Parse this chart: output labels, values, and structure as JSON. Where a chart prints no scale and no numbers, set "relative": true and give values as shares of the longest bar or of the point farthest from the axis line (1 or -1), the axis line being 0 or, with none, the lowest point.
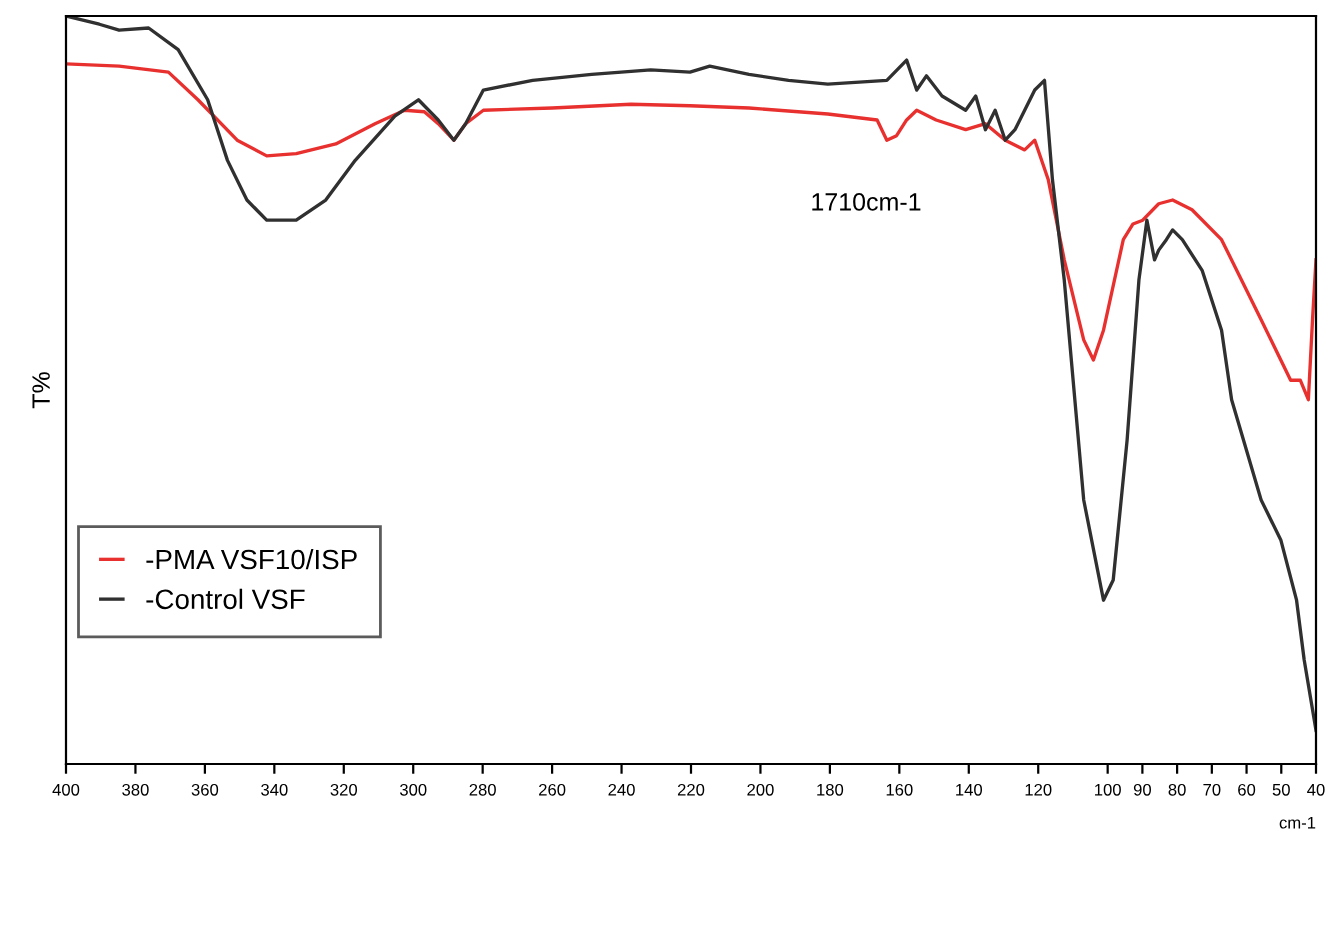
{
  "chart_data": {
    "type": "line",
    "relative": true,
    "xlabel": "cm-1",
    "ylabel": "T%",
    "annotations": [
      "1710cm-1"
    ],
    "xlim": [
      400,
      40
    ],
    "xticks": [
      400,
      380,
      360,
      340,
      320,
      300,
      280,
      260,
      240,
      220,
      200,
      180,
      160,
      140,
      120,
      100,
      90,
      80,
      70,
      60,
      50,
      40
    ],
    "legend": "bottom left",
    "grid": false,
    "series": [
      {
        "name": "-PMA VSF10/ISP",
        "color": "#e8302f",
        "x": [
          400,
          384.7,
          370.5,
          362.0,
          350.7,
          342.2,
          333.7,
          322.3,
          311.0,
          302.5,
          296.8,
          292.8,
          288.3,
          284.9,
          279.8,
          260.0,
          237.3,
          220.3,
          203.3,
          180.6,
          166.4,
          163.6,
          160.8,
          157.9,
          155.0,
          149.4,
          140.9,
          135.2,
          129.5,
          123.9,
          121.0,
          117.1,
          112.5,
          106.9,
          104.1,
          101.2,
          95.5,
          92.7,
          89.9,
          85.3,
          81.3,
          75.7,
          67.2,
          55.8,
          47.3,
          44.5,
          42.2,
          41.0,
          40
        ],
        "values": [
          0.936,
          0.933,
          0.925,
          0.888,
          0.834,
          0.813,
          0.816,
          0.829,
          0.856,
          0.874,
          0.872,
          0.856,
          0.834,
          0.856,
          0.874,
          0.877,
          0.882,
          0.88,
          0.877,
          0.869,
          0.861,
          0.834,
          0.84,
          0.861,
          0.874,
          0.861,
          0.848,
          0.856,
          0.834,
          0.821,
          0.834,
          0.781,
          0.674,
          0.567,
          0.54,
          0.58,
          0.701,
          0.722,
          0.727,
          0.749,
          0.754,
          0.741,
          0.701,
          0.594,
          0.513,
          0.513,
          0.487,
          0.594,
          0.674
        ]
      },
      {
        "name": "-Control VSF",
        "color": "#303030",
        "x": [
          400,
          390.4,
          384.7,
          376.2,
          367.7,
          359.2,
          353.5,
          347.9,
          342.2,
          333.7,
          325.2,
          316.7,
          305.3,
          298.5,
          292.8,
          288.3,
          284.9,
          279.8,
          265.6,
          248.6,
          231.6,
          220.3,
          214.6,
          203.3,
          191.9,
          180.6,
          163.6,
          157.9,
          155.0,
          152.2,
          147.7,
          140.9,
          138.0,
          135.2,
          132.4,
          129.5,
          126.7,
          123.9,
          121.0,
          118.2,
          115.9,
          112.5,
          106.9,
          101.2,
          98.4,
          94.4,
          91.0,
          88.7,
          86.5,
          85.3,
          83.1,
          81.3,
          78.5,
          72.8,
          67.2,
          64.3,
          55.8,
          50.1,
          45.6,
          43.4,
          40
        ],
        "values": [
          1.0,
          0.989,
          0.981,
          0.984,
          0.955,
          0.888,
          0.807,
          0.754,
          0.727,
          0.727,
          0.754,
          0.807,
          0.866,
          0.888,
          0.861,
          0.834,
          0.856,
          0.901,
          0.914,
          0.922,
          0.928,
          0.925,
          0.933,
          0.922,
          0.914,
          0.909,
          0.914,
          0.941,
          0.901,
          0.92,
          0.893,
          0.874,
          0.893,
          0.848,
          0.874,
          0.834,
          0.848,
          0.874,
          0.901,
          0.914,
          0.781,
          0.647,
          0.353,
          0.219,
          0.246,
          0.433,
          0.647,
          0.727,
          0.674,
          0.687,
          0.701,
          0.714,
          0.701,
          0.66,
          0.58,
          0.487,
          0.353,
          0.299,
          0.219,
          0.139,
          0.045
        ]
      }
    ]
  }
}
